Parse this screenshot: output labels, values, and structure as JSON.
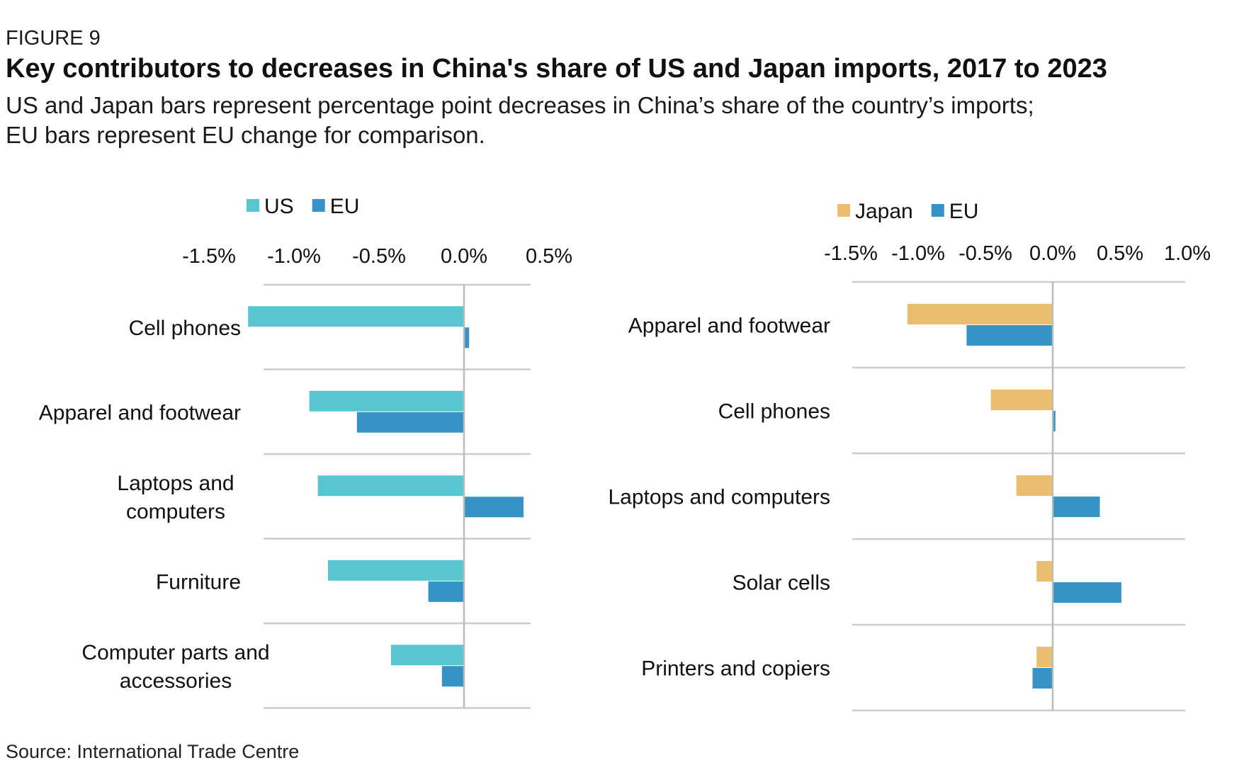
{
  "figure_label": "FIGURE 9",
  "title": "Key contributors to decreases in China's share of US and Japan imports, 2017 to 2023",
  "subtitle": "US and Japan bars represent percentage point decreases in China’s share of the country’s imports; EU bars represent EU change for comparison.",
  "source": "Source: International Trade Centre",
  "colors": {
    "us": "#57c6d1",
    "japan": "#ebbd6f",
    "eu": "#3593c6",
    "grid": "#cccccc",
    "zero_line": "#bbbbbb"
  },
  "chart_data": [
    {
      "type": "bar",
      "orientation": "horizontal",
      "legend_position": "top",
      "xlim": [
        -1.5,
        0.5
      ],
      "ticks": [
        -1.5,
        -1.0,
        -0.5,
        0.0,
        0.5
      ],
      "tick_labels": [
        "-1.5%",
        "-1.0%",
        "-0.5%",
        "0.0%",
        "0.5%"
      ],
      "categories": [
        [
          "Cell phones"
        ],
        [
          "Apparel and footwear"
        ],
        [
          "Laptops and",
          "computers"
        ],
        [
          "Furniture"
        ],
        [
          "Computer parts and",
          "accessories"
        ]
      ],
      "series": [
        {
          "name": "US",
          "color_key": "us",
          "values": [
            -1.27,
            -0.91,
            -0.86,
            -0.8,
            -0.43
          ]
        },
        {
          "name": "EU",
          "color_key": "eu",
          "values": [
            0.03,
            -0.63,
            0.35,
            -0.21,
            -0.13
          ]
        }
      ]
    },
    {
      "type": "bar",
      "orientation": "horizontal",
      "legend_position": "top",
      "xlim": [
        -1.5,
        1.0
      ],
      "ticks": [
        -1.5,
        -1.0,
        -0.5,
        0.0,
        0.5,
        1.0
      ],
      "tick_labels": [
        "-1.5%",
        "-1.0%",
        "-0.5%",
        "0.0%",
        "0.5%",
        "1.0%"
      ],
      "categories": [
        [
          "Apparel and footwear"
        ],
        [
          "Cell phones"
        ],
        [
          "Laptops and computers"
        ],
        [
          "Solar cells"
        ],
        [
          "Printers and copiers"
        ]
      ],
      "series": [
        {
          "name": "Japan",
          "color_key": "japan",
          "values": [
            -1.08,
            -0.46,
            -0.27,
            -0.12,
            -0.12
          ]
        },
        {
          "name": "EU",
          "color_key": "eu",
          "values": [
            -0.64,
            0.02,
            0.35,
            0.51,
            -0.15
          ]
        }
      ]
    }
  ]
}
